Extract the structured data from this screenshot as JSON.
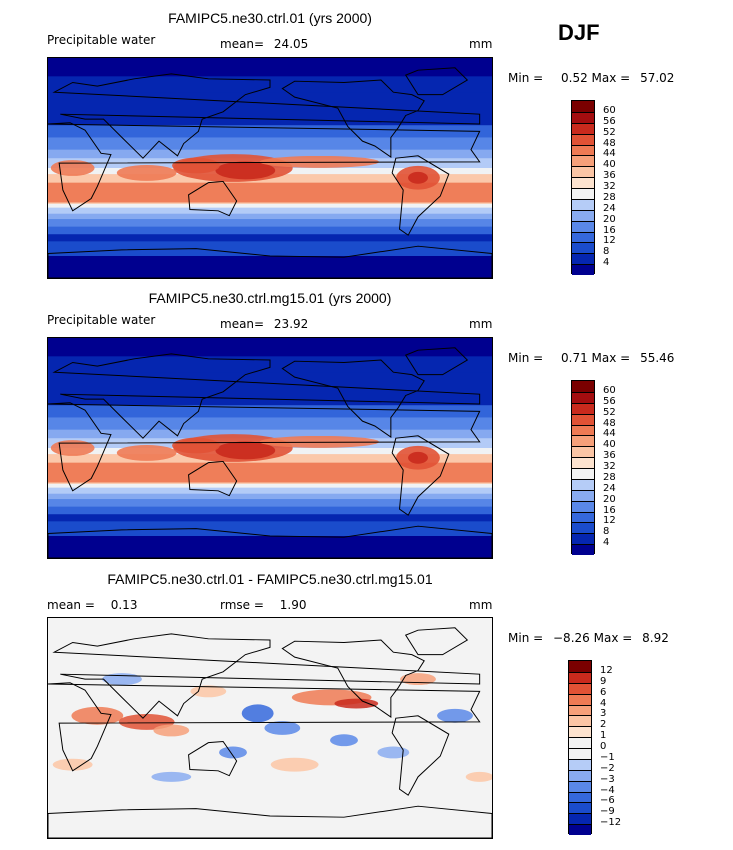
{
  "season": "DJF",
  "units": "mm",
  "palette_main": [
    "#00008f",
    "#0526b0",
    "#1a4ccc",
    "#3568dc",
    "#5a88e8",
    "#89abf0",
    "#b5ccf7",
    "#f3f3f3",
    "#fde3cf",
    "#fbc5a5",
    "#f6a07a",
    "#ee7a54",
    "#e15235",
    "#c92a1d",
    "#a40d0f",
    "#7a0000"
  ],
  "palette_diff": [
    "#00008f",
    "#0526b0",
    "#1a4ccc",
    "#3568dc",
    "#5a88e8",
    "#89abf0",
    "#b5ccf7",
    "#f3f3f3",
    "#f3f3f3",
    "#fde3cf",
    "#fbc5a5",
    "#f6a07a",
    "#ee7a54",
    "#e15235",
    "#c92a1d",
    "#7a0000"
  ],
  "panels": [
    {
      "title": "FAMIPC5.ne30.ctrl.01 (yrs 2000)",
      "variable": "Precipitable water",
      "stat1_label": "mean=",
      "stat1_value": "24.05",
      "stat2_label": "",
      "stat2_value": "",
      "units": "mm",
      "min_label": "Min =",
      "min_value": "0.52",
      "max_label": "Max =",
      "max_value": "57.02",
      "levels": [
        "60",
        "56",
        "52",
        "48",
        "44",
        "40",
        "36",
        "32",
        "28",
        "24",
        "20",
        "16",
        "12",
        "8",
        "4"
      ]
    },
    {
      "title": "FAMIPC5.ne30.ctrl.mg15.01 (yrs 2000)",
      "variable": "Precipitable water",
      "stat1_label": "mean=",
      "stat1_value": "23.92",
      "stat2_label": "",
      "stat2_value": "",
      "units": "mm",
      "min_label": "Min =",
      "min_value": "0.71",
      "max_label": "Max =",
      "max_value": "55.46",
      "levels": [
        "60",
        "56",
        "52",
        "48",
        "44",
        "40",
        "36",
        "32",
        "28",
        "24",
        "20",
        "16",
        "12",
        "8",
        "4"
      ]
    },
    {
      "title": "FAMIPC5.ne30.ctrl.01 - FAMIPC5.ne30.ctrl.mg15.01",
      "variable": "",
      "stat1_label": "mean =",
      "stat1_value": "0.13",
      "stat2_label": "rmse =",
      "stat2_value": "1.90",
      "units": "mm",
      "min_label": "Min =",
      "min_value": "−8.26",
      "max_label": "Max =",
      "max_value": "8.92",
      "levels": [
        "12",
        "9",
        "6",
        "4",
        "3",
        "2",
        "1",
        "0",
        "−1",
        "−2",
        "−3",
        "−4",
        "−6",
        "−9",
        "−12"
      ]
    }
  ]
}
